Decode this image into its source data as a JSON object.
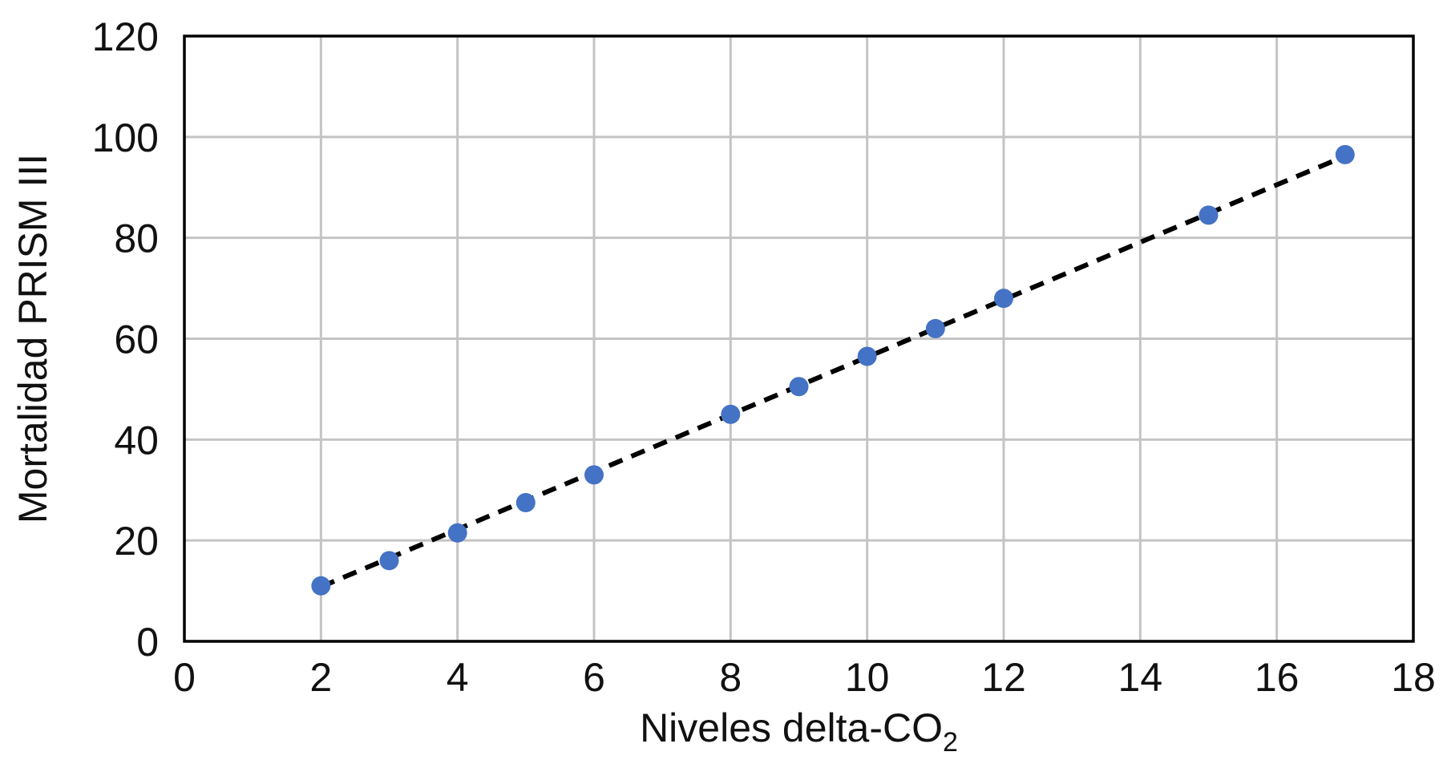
{
  "chart_data": {
    "type": "scatter",
    "title": "",
    "xlabel": "Niveles delta-CO",
    "xlabel_subscript": "2",
    "ylabel": "Mortalidad PRISM III",
    "xlim": [
      0,
      18
    ],
    "ylim": [
      0,
      120
    ],
    "xticks": [
      "0",
      "2",
      "4",
      "6",
      "8",
      "10",
      "12",
      "14",
      "16",
      "18"
    ],
    "yticks": [
      "0",
      "20",
      "40",
      "60",
      "80",
      "100",
      "120"
    ],
    "grid": true,
    "legend": "none",
    "point_color": "#4472C4",
    "trendline": {
      "style": "dashed",
      "color": "#000000",
      "x": [
        2,
        17
      ],
      "y": [
        10.8,
        96.2
      ]
    },
    "series": [
      {
        "x": [
          2,
          3,
          4,
          5,
          6,
          8,
          9,
          10,
          11,
          12,
          15,
          17
        ],
        "y": [
          11,
          16,
          21.5,
          27.5,
          33,
          45,
          50.5,
          56.5,
          62,
          68,
          84.5,
          96.5
        ]
      }
    ]
  }
}
